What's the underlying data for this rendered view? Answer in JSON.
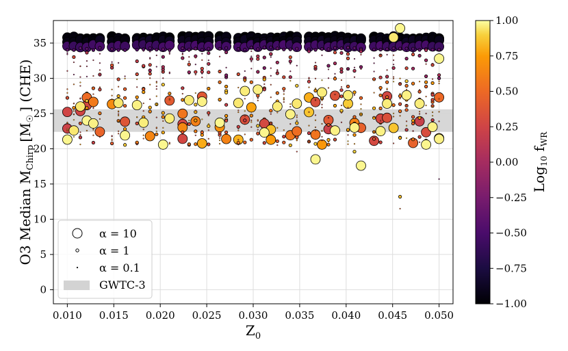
{
  "chart_data": {
    "type": "scatter",
    "xlabel": "Z",
    "xlabel_sub": "0",
    "ylabel": "O3 Median M",
    "ylabel_sub": "Chirp",
    "ylabel_units_open": "[M",
    "ylabel_units_sun": "☉",
    "ylabel_units_close": "] (CHE)",
    "xlim": [
      0.0085,
      0.0515
    ],
    "ylim": [
      -2,
      38.2
    ],
    "xticks": [
      0.01,
      0.015,
      0.02,
      0.025,
      0.03,
      0.035,
      0.04,
      0.045,
      0.05
    ],
    "xtick_labels": [
      "0.010",
      "0.015",
      "0.020",
      "0.025",
      "0.030",
      "0.035",
      "0.040",
      "0.045",
      "0.050"
    ],
    "yticks": [
      0,
      5,
      10,
      15,
      20,
      25,
      30,
      35
    ],
    "ytick_labels": [
      "0",
      "5",
      "10",
      "15",
      "20",
      "25",
      "30",
      "35"
    ],
    "grid": true,
    "gwtc3_band": [
      22.4,
      25.6
    ],
    "colorbar": {
      "label": "Log",
      "label_sub1": "10",
      "label_main": " f",
      "label_sub2": "WR",
      "range": [
        -1.0,
        1.0
      ],
      "ticks": [
        1.0,
        0.75,
        0.5,
        0.25,
        0.0,
        -0.25,
        -0.5,
        -0.75,
        -1.0
      ],
      "tick_labels": [
        "1.00",
        "0.75",
        "0.50",
        "0.25",
        "0.00",
        "−0.25",
        "−0.50",
        "−0.75",
        "−1.00"
      ],
      "colormap": "inferno"
    },
    "legend": {
      "placement": "lower-left",
      "entries": [
        {
          "label": "α = 10",
          "alpha": 10
        },
        {
          "label": "α = 1",
          "alpha": 1
        },
        {
          "label": "α = 0.1",
          "alpha": 0.1
        },
        {
          "label": "GWTC-3",
          "type": "band"
        }
      ]
    },
    "columns_z": [
      0.01,
      0.0107,
      0.0114,
      0.0121,
      0.0128,
      0.0135,
      0.0148,
      0.0155,
      0.0162,
      0.0175,
      0.0182,
      0.0189,
      0.0196,
      0.0203,
      0.021,
      0.0224,
      0.0231,
      0.0238,
      0.0245,
      0.0252,
      0.0264,
      0.0271,
      0.0284,
      0.0291,
      0.0298,
      0.0305,
      0.0312,
      0.0319,
      0.0326,
      0.0333,
      0.034,
      0.0347,
      0.036,
      0.0367,
      0.0374,
      0.0381,
      0.0388,
      0.0395,
      0.0402,
      0.0409,
      0.0416,
      0.043,
      0.0437,
      0.0444,
      0.0451,
      0.0458,
      0.0465,
      0.0472,
      0.0479,
      0.0486,
      0.0493,
      0.05
    ],
    "top_row": [
      {
        "m": 35.8,
        "c": -0.98,
        "alpha": 10
      },
      {
        "m": 35.3,
        "c": -0.92,
        "alpha": 10
      },
      {
        "m": 34.6,
        "c": -0.55,
        "alpha": 10
      },
      {
        "m": 34.2,
        "c": -0.4,
        "alpha": 1
      }
    ],
    "highlight_points": [
      {
        "z": 0.01,
        "m": 21.3,
        "c": 0.98,
        "alpha": 10
      },
      {
        "z": 0.0107,
        "m": 22.6,
        "c": 0.95,
        "alpha": 10
      },
      {
        "z": 0.0114,
        "m": 26.0,
        "c": 0.95,
        "alpha": 10
      },
      {
        "z": 0.0121,
        "m": 24.0,
        "c": 0.98,
        "alpha": 10
      },
      {
        "z": 0.0128,
        "m": 23.6,
        "c": 0.97,
        "alpha": 10
      },
      {
        "z": 0.0155,
        "m": 26.5,
        "c": 0.95,
        "alpha": 10
      },
      {
        "z": 0.0162,
        "m": 21.9,
        "c": 0.98,
        "alpha": 10
      },
      {
        "z": 0.0175,
        "m": 26.2,
        "c": 0.97,
        "alpha": 10
      },
      {
        "z": 0.0182,
        "m": 23.7,
        "c": 0.96,
        "alpha": 10
      },
      {
        "z": 0.0203,
        "m": 20.6,
        "c": 0.98,
        "alpha": 10
      },
      {
        "z": 0.021,
        "m": 24.3,
        "c": 0.96,
        "alpha": 10
      },
      {
        "z": 0.0231,
        "m": 26.9,
        "c": 0.96,
        "alpha": 10
      },
      {
        "z": 0.0245,
        "m": 26.7,
        "c": 0.97,
        "alpha": 10
      },
      {
        "z": 0.0264,
        "m": 23.7,
        "c": 0.98,
        "alpha": 10
      },
      {
        "z": 0.0284,
        "m": 26.5,
        "c": 0.95,
        "alpha": 10
      },
      {
        "z": 0.0291,
        "m": 28.2,
        "c": 0.96,
        "alpha": 10
      },
      {
        "z": 0.0305,
        "m": 28.4,
        "c": 0.97,
        "alpha": 10
      },
      {
        "z": 0.0312,
        "m": 22.3,
        "c": 0.98,
        "alpha": 10
      },
      {
        "z": 0.0326,
        "m": 26.0,
        "c": 0.96,
        "alpha": 10
      },
      {
        "z": 0.034,
        "m": 24.9,
        "c": 0.97,
        "alpha": 10
      },
      {
        "z": 0.0347,
        "m": 26.4,
        "c": 0.95,
        "alpha": 10
      },
      {
        "z": 0.0367,
        "m": 18.5,
        "c": 0.98,
        "alpha": 10
      },
      {
        "z": 0.0374,
        "m": 28.0,
        "c": 0.96,
        "alpha": 10
      },
      {
        "z": 0.0388,
        "m": 22.6,
        "c": 0.97,
        "alpha": 10
      },
      {
        "z": 0.0402,
        "m": 27.6,
        "c": 0.96,
        "alpha": 10
      },
      {
        "z": 0.0409,
        "m": 23.0,
        "c": 0.97,
        "alpha": 10
      },
      {
        "z": 0.0416,
        "m": 17.6,
        "c": 0.98,
        "alpha": 10
      },
      {
        "z": 0.0437,
        "m": 22.5,
        "c": 0.97,
        "alpha": 10
      },
      {
        "z": 0.0444,
        "m": 26.4,
        "c": 0.96,
        "alpha": 10
      },
      {
        "z": 0.0451,
        "m": 35.8,
        "c": 0.95,
        "alpha": 10
      },
      {
        "z": 0.0458,
        "m": 37.1,
        "c": 0.98,
        "alpha": 10
      },
      {
        "z": 0.0465,
        "m": 27.6,
        "c": 0.97,
        "alpha": 10
      },
      {
        "z": 0.0479,
        "m": 26.4,
        "c": 0.96,
        "alpha": 10
      },
      {
        "z": 0.0486,
        "m": 20.6,
        "c": 0.98,
        "alpha": 10
      },
      {
        "z": 0.0493,
        "m": 23.1,
        "c": 0.97,
        "alpha": 10
      },
      {
        "z": 0.05,
        "m": 32.8,
        "c": 0.98,
        "alpha": 10
      },
      {
        "z": 0.05,
        "m": 21.4,
        "c": 0.97,
        "alpha": 10
      },
      {
        "z": 0.0458,
        "m": 13.2,
        "c": 0.85,
        "alpha": 1
      },
      {
        "z": 0.0458,
        "m": 11.5,
        "c": 0.5,
        "alpha": 0.1
      },
      {
        "z": 0.05,
        "m": 15.7,
        "c": -0.2,
        "alpha": 0.1
      },
      {
        "z": 0.0347,
        "m": 19.6,
        "c": 0.3,
        "alpha": 0.1
      },
      {
        "z": 0.0367,
        "m": 20.7,
        "c": 0.9,
        "alpha": 1
      },
      {
        "z": 0.0409,
        "m": 19.6,
        "c": 0.9,
        "alpha": 1
      }
    ]
  }
}
